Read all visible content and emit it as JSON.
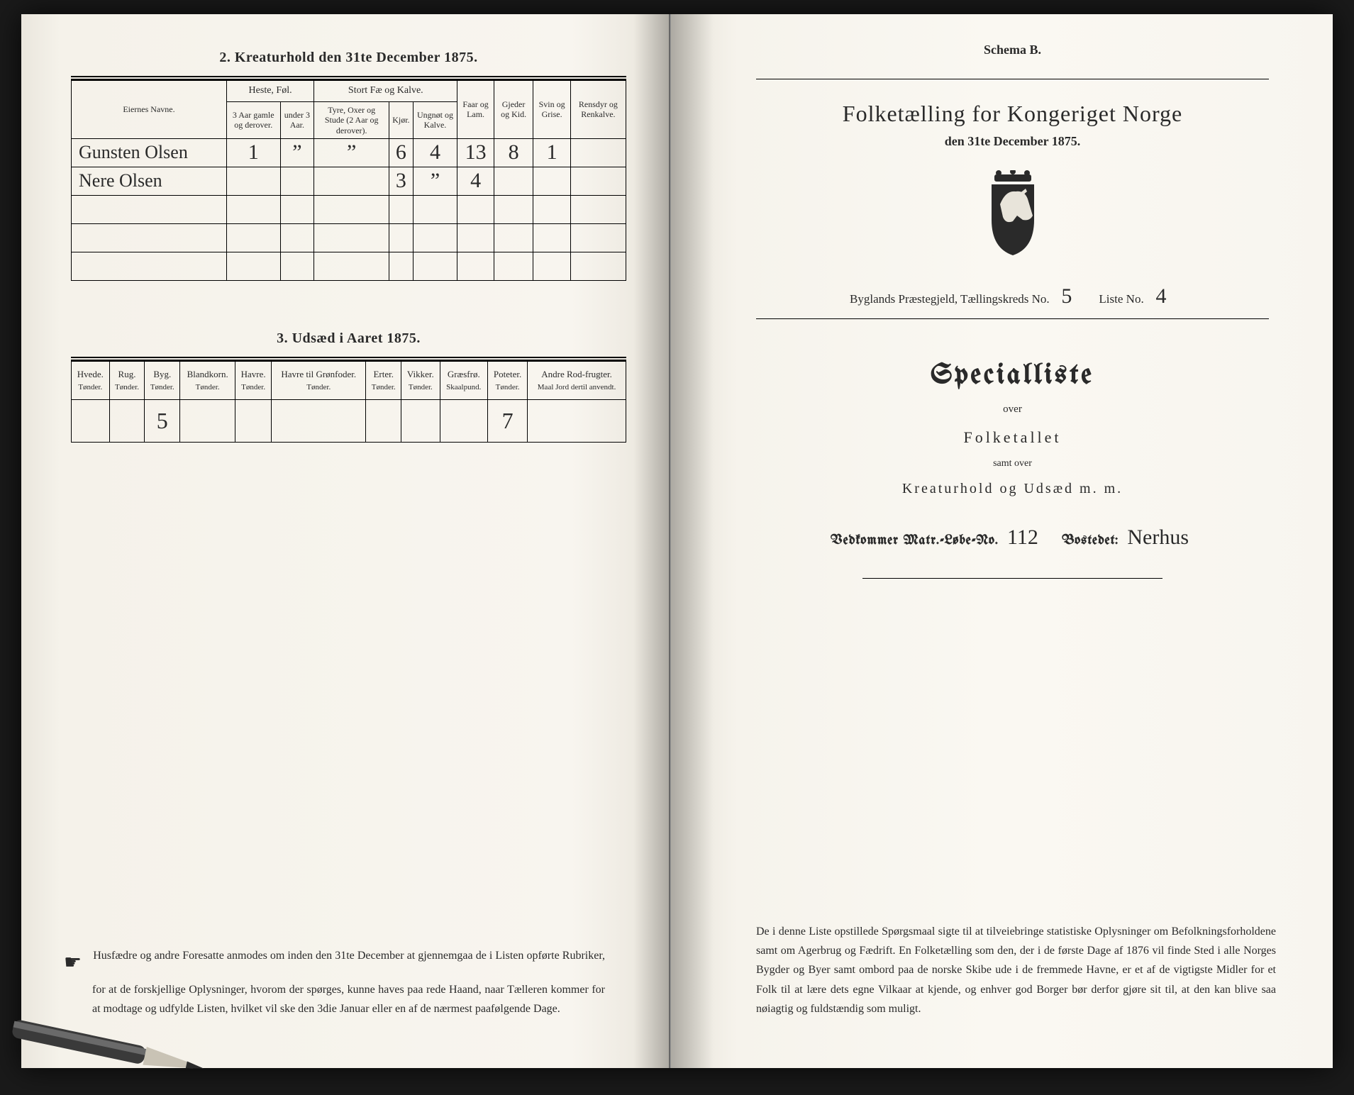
{
  "left": {
    "section2_title": "2.  Kreaturhold den 31te December 1875.",
    "table2": {
      "col_name": "Eiernes Navne.",
      "grp_heste": "Heste, Føl.",
      "grp_storfe": "Stort Fæ og Kalve.",
      "col_heste_a": "3 Aar gamle og derover.",
      "col_heste_b": "under 3 Aar.",
      "col_stor_a": "Tyre, Oxer og Stude (2 Aar og derover).",
      "col_stor_b": "Kjør.",
      "col_stor_c": "Ungnøt og Kalve.",
      "col_faar": "Faar og Lam.",
      "col_gjed": "Gjeder og Kid.",
      "col_svin": "Svin og Grise.",
      "col_ren": "Rensdyr og Renkalve.",
      "rows": [
        {
          "name": "Gunsten Olsen",
          "v": [
            "1",
            "”",
            "”",
            "6",
            "4",
            "13",
            "8",
            "1",
            ""
          ]
        },
        {
          "name": "Nere Olsen",
          "v": [
            "",
            "",
            "",
            "3",
            "”",
            "4",
            "",
            "",
            ""
          ]
        }
      ]
    },
    "section3_title": "3.  Udsæd i Aaret 1875.",
    "table3": {
      "cols": [
        {
          "h": "Hvede.",
          "s": "Tønder."
        },
        {
          "h": "Rug.",
          "s": "Tønder."
        },
        {
          "h": "Byg.",
          "s": "Tønder."
        },
        {
          "h": "Blandkorn.",
          "s": "Tønder."
        },
        {
          "h": "Havre.",
          "s": "Tønder."
        },
        {
          "h": "Havre til Grønfoder.",
          "s": "Tønder."
        },
        {
          "h": "Erter.",
          "s": "Tønder."
        },
        {
          "h": "Vikker.",
          "s": "Tønder."
        },
        {
          "h": "Græsfrø.",
          "s": "Skaalpund."
        },
        {
          "h": "Poteter.",
          "s": "Tønder."
        },
        {
          "h": "Andre Rod-frugter.",
          "s": "Maal Jord dertil anvendt."
        }
      ],
      "row": [
        "",
        "",
        "5",
        "",
        "",
        "",
        "",
        "",
        "",
        "7",
        ""
      ]
    },
    "footnote": "Husfædre og andre Foresatte anmodes om inden den 31te December at gjennemgaa de i Listen opførte Rubriker, for at de forskjellige Oplysninger, hvorom der spørges, kunne haves paa rede Haand, naar Tælleren kommer for at modtage og udfylde Listen, hvilket vil ske den 3die Januar eller en af de nærmest paafølgende Dage."
  },
  "right": {
    "schema": "Schema B.",
    "title": "Folketælling for Kongeriget Norge",
    "subtitle": "den 31te December 1875.",
    "parish_prefix": "Byglands",
    "parish_mid": " Præstegjeld, Tællingskreds No. ",
    "parish_kreds_no": "5",
    "liste_label": "Liste No. ",
    "liste_no": "4",
    "specialliste": "Specialliste",
    "over": "over",
    "folketallet": "Folketallet",
    "samt": "samt over",
    "kreaturhold": "Kreaturhold  og  Udsæd  m. m.",
    "vedk_label": "Vedkommer Matr.-Løbe-No.",
    "vedk_no": "112",
    "bostedet_label": "Bostedet:",
    "bostedet": "Nerhus",
    "footnote": "De i denne Liste opstillede Spørgsmaal sigte til at tilveiebringe statistiske Oplysninger om Befolkningsforholdene samt om Agerbrug og Fædrift.  En Folketælling som den, der i de første Dage af 1876 vil finde Sted i alle Norges Bygder og Byer samt ombord paa de norske Skibe ude i de fremmede Havne, er et af de vigtigste Midler for et Folk til at lære dets egne Vilkaar at kjende, og enhver god Borger bør derfor gjøre sit til, at den kan blive saa nøiagtig og fuldstændig som muligt."
  },
  "colors": {
    "ink": "#1a1a1a",
    "page": "#f8f5ef"
  }
}
